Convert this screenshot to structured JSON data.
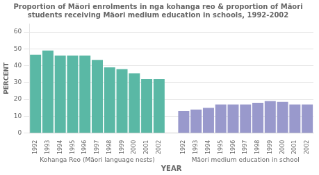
{
  "chart_data": {
    "type": "bar",
    "title": "Proportion of Mäori enrolments in nga kohanga reo & proportion of Mäori\nstudents receiving Mäori medium education in schools, 1992-2002",
    "xlabel": "YEAR",
    "ylabel": "PERCENT",
    "categories": [
      "1992",
      "1993",
      "1994",
      "1995",
      "1996",
      "1997",
      "1998",
      "1999",
      "2000",
      "2001",
      "2002"
    ],
    "series": [
      {
        "name": "Kohanga Reo (Mäori language nests)",
        "color": "#5ab8a5",
        "values": [
          46.5,
          49.0,
          46.0,
          46.0,
          46.0,
          43.5,
          39.0,
          38.0,
          35.5,
          32.0,
          32.0
        ]
      },
      {
        "name": "Mäori medium education in school",
        "color": "#9999cc",
        "values": [
          13.0,
          14.0,
          15.0,
          17.0,
          17.0,
          17.0,
          18.0,
          19.0,
          18.5,
          17.0,
          17.0
        ]
      }
    ],
    "ylim": [
      0,
      65
    ],
    "yticks": [
      0,
      10,
      20,
      30,
      40,
      50,
      60
    ],
    "grid": true
  }
}
